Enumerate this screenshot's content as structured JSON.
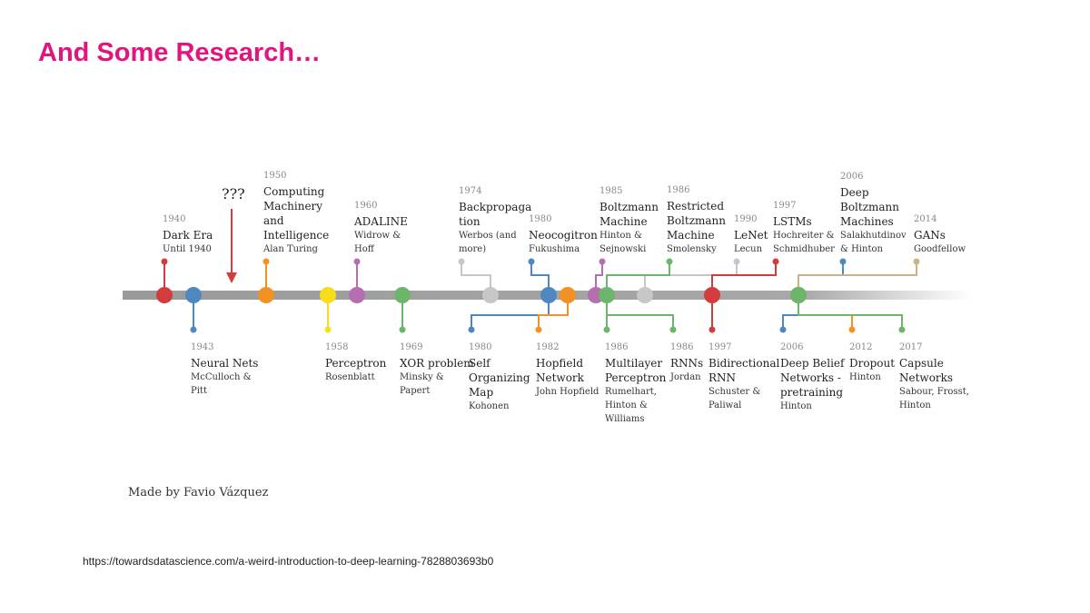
{
  "slide": {
    "title": "And Some Research…"
  },
  "timeline": {
    "unknown_marker": "???",
    "credit": "Made by Favio Vázquez",
    "events": [
      {
        "id": "dark-era",
        "year": "1940",
        "name": [
          "Dark Era"
        ],
        "authors": [
          "Until 1940"
        ],
        "color": "#d23c3c"
      },
      {
        "id": "neural-nets",
        "year": "1943",
        "name": [
          "Neural Nets"
        ],
        "authors": [
          "McCulloch &",
          "Pitt"
        ],
        "color": "#4f88c0"
      },
      {
        "id": "computing-machinery",
        "year": "1950",
        "name": [
          "Computing",
          "Machinery",
          "and",
          "Intelligence"
        ],
        "authors": [
          "Alan Turing"
        ],
        "color": "#f29224"
      },
      {
        "id": "perceptron",
        "year": "1958",
        "name": [
          "Perceptron"
        ],
        "authors": [
          "Rosenblatt"
        ],
        "color": "#f7dd1c"
      },
      {
        "id": "adaline",
        "year": "1960",
        "name": [
          "ADALINE"
        ],
        "authors": [
          "Widrow &",
          "Hoff"
        ],
        "color": "#b56fb0"
      },
      {
        "id": "xor-problem",
        "year": "1969",
        "name": [
          "XOR problem"
        ],
        "authors": [
          "Minsky &",
          "Papert"
        ],
        "color": "#6db56b"
      },
      {
        "id": "backpropagation",
        "year": "1974",
        "name": [
          "Backpropaga",
          "tion"
        ],
        "authors": [
          "Werbos (and",
          "more)"
        ],
        "color": "#c7c7c7"
      },
      {
        "id": "self-organizing-map",
        "year": "1980",
        "name": [
          "Self",
          "Organizing",
          "Map"
        ],
        "authors": [
          "Kohonen"
        ],
        "color": "#4f88c0"
      },
      {
        "id": "neocogitron",
        "year": "1980",
        "name": [
          "Neocogitron"
        ],
        "authors": [
          "Fukushima"
        ],
        "color": "#4f88c0"
      },
      {
        "id": "hopfield-network",
        "year": "1982",
        "name": [
          "Hopfield",
          "Network"
        ],
        "authors": [
          "John Hopfield"
        ],
        "color": "#f29224"
      },
      {
        "id": "boltzmann-machine",
        "year": "1985",
        "name": [
          "Boltzmann",
          "Machine"
        ],
        "authors": [
          "Hinton &",
          "Sejnowski"
        ],
        "color": "#b56fb0"
      },
      {
        "id": "multilayer-perceptron",
        "year": "1986",
        "name": [
          "Multilayer",
          "Perceptron"
        ],
        "authors": [
          "Rumelhart,",
          "Hinton &",
          "Williams"
        ],
        "color": "#6db56b"
      },
      {
        "id": "rnns",
        "year": "1986",
        "name": [
          "RNNs"
        ],
        "authors": [
          "Jordan"
        ],
        "color": "#6db56b"
      },
      {
        "id": "restricted-boltzmann",
        "year": "1986",
        "name": [
          "Restricted",
          "Boltzmann",
          "Machine"
        ],
        "authors": [
          "Smolensky"
        ],
        "color": "#6db56b"
      },
      {
        "id": "lenet",
        "year": "1990",
        "name": [
          "LeNet"
        ],
        "authors": [
          "Lecun"
        ],
        "color": "#c7c7c7"
      },
      {
        "id": "bidirectional-rnn",
        "year": "1997",
        "name": [
          "Bidirectional",
          "RNN"
        ],
        "authors": [
          "Schuster &",
          "Paliwal"
        ],
        "color": "#d23c3c"
      },
      {
        "id": "lstms",
        "year": "1997",
        "name": [
          "LSTMs"
        ],
        "authors": [
          "Hochreiter &",
          "Schmidhuber"
        ],
        "color": "#d23c3c"
      },
      {
        "id": "deep-belief-networks",
        "year": "2006",
        "name": [
          "Deep Belief",
          "Networks -",
          "pretraining"
        ],
        "authors": [
          "Hinton"
        ],
        "color": "#4f88c0"
      },
      {
        "id": "deep-boltzmann",
        "year": "2006",
        "name": [
          "Deep",
          "Boltzmann",
          "Machines"
        ],
        "authors": [
          "Salakhutdinov",
          "& Hinton"
        ],
        "color": "#4f88c0"
      },
      {
        "id": "dropout",
        "year": "2012",
        "name": [
          "Dropout"
        ],
        "authors": [
          "Hinton"
        ],
        "color": "#f29224"
      },
      {
        "id": "gans",
        "year": "2014",
        "name": [
          "GANs"
        ],
        "authors": [
          "Goodfellow"
        ],
        "color": "#c9b38a"
      },
      {
        "id": "capsule-networks",
        "year": "2017",
        "name": [
          "Capsule",
          "Networks"
        ],
        "authors": [
          "Sabour, Frosst,",
          "Hinton"
        ],
        "color": "#6db56b"
      }
    ]
  },
  "source": {
    "url": "https://towardsdatascience.com/a-weird-introduction-to-deep-learning-7828803693b0"
  }
}
